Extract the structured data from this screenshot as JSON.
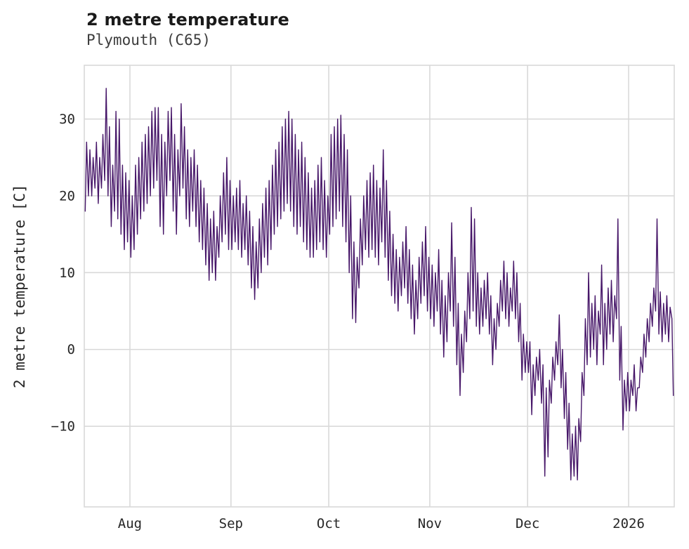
{
  "header": {
    "title": "2 metre temperature",
    "subtitle": "Plymouth (C65)"
  },
  "chart_data": {
    "type": "line",
    "title": "2 metre temperature",
    "subtitle": "Plymouth (C65)",
    "xlabel": "",
    "ylabel": "2 metre temperature [C]",
    "unit": "C",
    "line_color": "#471769",
    "grid_color": "#d9d9d9",
    "text_color": "#262626",
    "grid": true,
    "legend": "none",
    "x_range_days": [
      0,
      181
    ],
    "y_range": [
      -20.5,
      37
    ],
    "x_ticks": [
      {
        "day": 14,
        "label": "Aug"
      },
      {
        "day": 45,
        "label": "Sep"
      },
      {
        "day": 75,
        "label": "Oct"
      },
      {
        "day": 106,
        "label": "Nov"
      },
      {
        "day": 136,
        "label": "Dec"
      },
      {
        "day": 167,
        "label": "2026"
      }
    ],
    "y_ticks": [
      {
        "value": 30,
        "label": "30"
      },
      {
        "value": 20,
        "label": "20"
      },
      {
        "value": 10,
        "label": "10"
      },
      {
        "value": 0,
        "label": "0"
      },
      {
        "value": -10,
        "label": "−10"
      }
    ],
    "series_note": "two temperature points per day [early-morning, afternoon] in °C; day 0 is the first day plotted (mid-July), day 167 = 1 Jan 2026",
    "daily": [
      [
        18,
        27
      ],
      [
        20,
        26
      ],
      [
        20,
        25
      ],
      [
        21,
        27
      ],
      [
        19,
        25
      ],
      [
        21,
        28
      ],
      [
        22,
        34
      ],
      [
        20,
        29
      ],
      [
        16,
        24
      ],
      [
        18,
        31
      ],
      [
        17,
        30
      ],
      [
        15,
        24
      ],
      [
        13,
        23
      ],
      [
        14,
        22
      ],
      [
        12,
        20
      ],
      [
        13,
        24
      ],
      [
        15,
        25
      ],
      [
        17,
        27
      ],
      [
        18,
        28
      ],
      [
        19,
        29
      ],
      [
        20,
        31
      ],
      [
        21,
        31.5
      ],
      [
        22,
        31.5
      ],
      [
        16,
        28
      ],
      [
        15,
        27
      ],
      [
        20,
        31
      ],
      [
        22,
        31.5
      ],
      [
        18,
        28
      ],
      [
        15,
        26
      ],
      [
        20,
        32
      ],
      [
        21,
        29
      ],
      [
        17,
        26
      ],
      [
        16,
        25
      ],
      [
        18,
        26
      ],
      [
        16,
        24
      ],
      [
        14,
        22
      ],
      [
        13,
        21
      ],
      [
        11,
        19
      ],
      [
        9,
        17
      ],
      [
        10,
        18
      ],
      [
        9,
        16
      ],
      [
        12,
        20
      ],
      [
        14,
        23
      ],
      [
        15,
        25
      ],
      [
        13,
        22
      ],
      [
        13,
        20
      ],
      [
        14,
        21
      ],
      [
        13,
        22
      ],
      [
        12,
        19
      ],
      [
        13,
        20
      ],
      [
        11,
        18
      ],
      [
        8,
        16
      ],
      [
        6.5,
        14
      ],
      [
        8,
        17
      ],
      [
        10,
        19
      ],
      [
        12,
        21
      ],
      [
        11,
        22
      ],
      [
        13,
        24
      ],
      [
        15,
        26
      ],
      [
        16,
        27
      ],
      [
        17,
        29
      ],
      [
        18,
        30
      ],
      [
        19,
        31
      ],
      [
        18,
        30
      ],
      [
        16,
        28
      ],
      [
        15,
        26
      ],
      [
        16,
        27
      ],
      [
        14,
        25
      ],
      [
        13,
        23
      ],
      [
        12,
        21
      ],
      [
        12,
        22
      ],
      [
        13,
        24
      ],
      [
        14,
        25
      ],
      [
        13,
        22
      ],
      [
        12,
        20
      ],
      [
        15,
        28
      ],
      [
        16,
        29
      ],
      [
        17,
        30
      ],
      [
        18,
        30.5
      ],
      [
        16,
        28
      ],
      [
        14,
        26
      ],
      [
        10,
        20
      ],
      [
        4,
        14
      ],
      [
        3.5,
        12
      ],
      [
        8,
        17
      ],
      [
        11,
        20
      ],
      [
        13,
        22
      ],
      [
        12,
        23
      ],
      [
        13,
        24
      ],
      [
        12,
        22
      ],
      [
        11,
        21
      ],
      [
        14,
        26
      ],
      [
        12,
        22
      ],
      [
        9,
        18
      ],
      [
        7,
        15
      ],
      [
        6,
        13
      ],
      [
        5,
        12
      ],
      [
        7,
        14
      ],
      [
        8,
        16
      ],
      [
        6,
        13
      ],
      [
        4,
        11
      ],
      [
        2,
        9
      ],
      [
        4,
        12
      ],
      [
        6,
        14
      ],
      [
        7,
        16
      ],
      [
        5,
        12
      ],
      [
        4,
        11
      ],
      [
        3,
        10
      ],
      [
        5,
        13
      ],
      [
        2,
        9
      ],
      [
        -1,
        7
      ],
      [
        1,
        10
      ],
      [
        5,
        16.5
      ],
      [
        3,
        12
      ],
      [
        -2,
        6
      ],
      [
        -6,
        2
      ],
      [
        -3,
        5
      ],
      [
        1,
        10
      ],
      [
        4,
        18.5
      ],
      [
        5,
        17
      ],
      [
        3,
        10
      ],
      [
        2,
        8
      ],
      [
        3,
        9
      ],
      [
        4,
        10
      ],
      [
        2,
        7
      ],
      [
        -2,
        4
      ],
      [
        0,
        6
      ],
      [
        3,
        9
      ],
      [
        5,
        11.5
      ],
      [
        4,
        10
      ],
      [
        3,
        8
      ],
      [
        5,
        11.5
      ],
      [
        4,
        10
      ],
      [
        1,
        6
      ],
      [
        -4,
        2
      ],
      [
        -3,
        1
      ],
      [
        -3,
        1
      ],
      [
        -8.5,
        -2
      ],
      [
        -6,
        -1
      ],
      [
        -4,
        0
      ],
      [
        -7,
        -2
      ],
      [
        -16.5,
        -5
      ],
      [
        -14,
        -4
      ],
      [
        -7,
        -1
      ],
      [
        -4,
        1
      ],
      [
        -2,
        4.5
      ],
      [
        -5,
        0
      ],
      [
        -9,
        -3
      ],
      [
        -13,
        -7
      ],
      [
        -17,
        -11
      ],
      [
        -16.5,
        -10
      ],
      [
        -17,
        -9
      ],
      [
        -12,
        -3
      ],
      [
        -6,
        4
      ],
      [
        -2,
        10
      ],
      [
        -1,
        6
      ],
      [
        0,
        7
      ],
      [
        -2,
        5
      ],
      [
        2,
        11
      ],
      [
        -2,
        6
      ],
      [
        0,
        8
      ],
      [
        2,
        9
      ],
      [
        1,
        7
      ],
      [
        4,
        17
      ],
      [
        -4,
        3
      ],
      [
        -10.5,
        -4
      ],
      [
        -8,
        -3
      ],
      [
        -8,
        -4
      ],
      [
        -6,
        -2
      ],
      [
        -8,
        -5
      ],
      [
        -5,
        -1
      ],
      [
        -3,
        2
      ],
      [
        -1,
        4
      ],
      [
        1,
        6
      ],
      [
        3,
        8
      ],
      [
        5,
        17
      ],
      [
        2,
        7.5
      ],
      [
        1,
        6
      ],
      [
        2,
        7
      ],
      [
        1,
        5.5
      ],
      [
        4,
        -6
      ]
    ]
  }
}
